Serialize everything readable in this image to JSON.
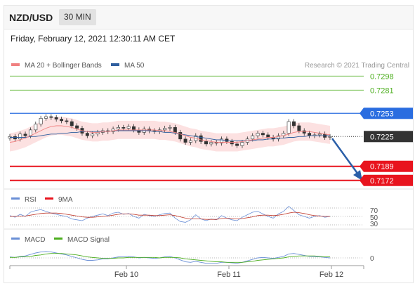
{
  "header": {
    "pair": "NZD/USD",
    "timeframe": "30 MIN"
  },
  "datetime": "Friday, February 12, 2021 12:30:11 AM CET",
  "legend": {
    "ma20": {
      "label": "MA 20 + Bollinger Bands",
      "color": "#f08080"
    },
    "ma50": {
      "label": "MA 50",
      "color": "#2f5f9f"
    },
    "credit": "Research © 2021 Trading Central"
  },
  "levels": [
    {
      "value": "0.7298",
      "kind": "target",
      "color": "#4cae1e"
    },
    {
      "value": "0.7281",
      "kind": "target",
      "color": "#4cae1e"
    },
    {
      "value": "0.7253",
      "kind": "pivot",
      "color": "#2a6de0"
    },
    {
      "value": "0.7225",
      "kind": "current",
      "color": "#333333"
    },
    {
      "value": "0.7189",
      "kind": "support",
      "color": "#e8141e"
    },
    {
      "value": "0.7172",
      "kind": "support",
      "color": "#e8141e"
    }
  ],
  "rsi": {
    "label": "RSI",
    "ma_label": "9MA",
    "levels": [
      "70",
      "50",
      "30"
    ]
  },
  "macd": {
    "label": "MACD",
    "signal_label": "MACD Signal",
    "zero": "0"
  },
  "xaxis": [
    "Feb 10",
    "Feb 11",
    "Feb 12"
  ],
  "chart_data": {
    "type": "candlestick",
    "ylim": [
      0.7165,
      0.7305
    ],
    "close": [
      0.7225,
      0.7222,
      0.7228,
      0.7226,
      0.7233,
      0.724,
      0.7247,
      0.7249,
      0.7248,
      0.7246,
      0.7244,
      0.7243,
      0.7238,
      0.7235,
      0.7229,
      0.7226,
      0.7228,
      0.723,
      0.7232,
      0.7231,
      0.7234,
      0.7236,
      0.7235,
      0.7237,
      0.7233,
      0.723,
      0.7234,
      0.7232,
      0.7231,
      0.7233,
      0.7235,
      0.7236,
      0.723,
      0.7222,
      0.7218,
      0.722,
      0.7226,
      0.7219,
      0.7216,
      0.7218,
      0.7217,
      0.7222,
      0.7219,
      0.7216,
      0.7214,
      0.7218,
      0.7222,
      0.7226,
      0.7229,
      0.7227,
      0.7224,
      0.7222,
      0.7226,
      0.7229,
      0.7243,
      0.7238,
      0.7232,
      0.7229,
      0.7226,
      0.7227,
      0.7228,
      0.7224,
      0.7225
    ],
    "ma20": [
      0.7218,
      0.7219,
      0.7221,
      0.7223,
      0.7226,
      0.7229,
      0.7232,
      0.7235,
      0.7237,
      0.7238,
      0.7238,
      0.7237,
      0.7236,
      0.7234,
      0.7232,
      0.7231,
      0.723,
      0.723,
      0.7231,
      0.7231,
      0.7232,
      0.7233,
      0.7233,
      0.7233,
      0.7233,
      0.7233,
      0.7233,
      0.7233,
      0.7233,
      0.7232,
      0.7232,
      0.7231,
      0.723,
      0.7228,
      0.7226,
      0.7224,
      0.7223,
      0.7221,
      0.722,
      0.7219,
      0.7218,
      0.7218,
      0.7218,
      0.7218,
      0.7218,
      0.7219,
      0.722,
      0.7221,
      0.7222,
      0.7223,
      0.7224,
      0.7224,
      0.7225,
      0.7226,
      0.7228,
      0.723,
      0.7231,
      0.7231,
      0.7231,
      0.723,
      0.7229,
      0.7228,
      0.7227
    ],
    "ma50": [
      0.7224,
      0.7224,
      0.7224,
      0.7224,
      0.7225,
      0.7225,
      0.7226,
      0.7227,
      0.7228,
      0.7228,
      0.7229,
      0.7229,
      0.723,
      0.723,
      0.7231,
      0.7231,
      0.7231,
      0.7231,
      0.7231,
      0.7231,
      0.7232,
      0.7232,
      0.7232,
      0.7232,
      0.7232,
      0.7232,
      0.7232,
      0.7232,
      0.7231,
      0.7231,
      0.723,
      0.723,
      0.7229,
      0.7228,
      0.7227,
      0.7226,
      0.7225,
      0.7224,
      0.7223,
      0.7222,
      0.7221,
      0.7221,
      0.722,
      0.722,
      0.722,
      0.722,
      0.722,
      0.722,
      0.7221,
      0.7221,
      0.7222,
      0.7222,
      0.7223,
      0.7223,
      0.7224,
      0.7224,
      0.7225,
      0.7225,
      0.7226,
      0.7226,
      0.7226,
      0.7226,
      0.7226
    ],
    "rsi": [
      52,
      48,
      55,
      50,
      60,
      64,
      66,
      62,
      58,
      55,
      52,
      50,
      44,
      42,
      40,
      46,
      50,
      53,
      56,
      52,
      58,
      60,
      55,
      57,
      50,
      46,
      55,
      52,
      50,
      54,
      57,
      58,
      46,
      38,
      36,
      42,
      54,
      44,
      40,
      44,
      42,
      52,
      46,
      42,
      40,
      48,
      54,
      60,
      62,
      56,
      50,
      46,
      56,
      62,
      74,
      64,
      54,
      50,
      46,
      50,
      52,
      48,
      50
    ],
    "rsi_ma": [
      50,
      50,
      51,
      51,
      53,
      55,
      57,
      58,
      58,
      58,
      57,
      55,
      53,
      51,
      49,
      48,
      48,
      49,
      50,
      51,
      53,
      55,
      56,
      56,
      55,
      53,
      53,
      53,
      52,
      52,
      53,
      54,
      52,
      49,
      46,
      44,
      44,
      44,
      43,
      43,
      43,
      45,
      46,
      45,
      44,
      45,
      47,
      49,
      52,
      53,
      53,
      52,
      53,
      55,
      58,
      60,
      59,
      57,
      54,
      52,
      51,
      50,
      50
    ],
    "macd": [
      0.2,
      0.1,
      0.3,
      0.4,
      0.7,
      1.0,
      1.2,
      1.3,
      1.2,
      1.0,
      0.8,
      0.6,
      0.3,
      0.0,
      -0.3,
      -0.5,
      -0.5,
      -0.4,
      -0.2,
      -0.2,
      0.0,
      0.2,
      0.2,
      0.3,
      0.2,
      0.0,
      0.1,
      0.0,
      -0.1,
      0.0,
      0.2,
      0.3,
      0.0,
      -0.4,
      -0.8,
      -0.9,
      -0.7,
      -0.9,
      -1.1,
      -1.1,
      -1.1,
      -0.9,
      -0.9,
      -1.0,
      -1.1,
      -0.9,
      -0.6,
      -0.3,
      0.0,
      0.1,
      0.0,
      -0.1,
      0.1,
      0.3,
      0.8,
      0.9,
      0.7,
      0.5,
      0.3,
      0.2,
      0.2,
      0.1,
      0.0
    ],
    "macd_signal": [
      0.1,
      0.1,
      0.2,
      0.2,
      0.3,
      0.5,
      0.6,
      0.8,
      0.9,
      0.9,
      0.9,
      0.8,
      0.7,
      0.6,
      0.4,
      0.2,
      0.1,
      0.0,
      -0.1,
      -0.1,
      -0.1,
      0.0,
      0.0,
      0.1,
      0.1,
      0.1,
      0.1,
      0.1,
      0.1,
      0.0,
      0.1,
      0.1,
      0.1,
      0.0,
      -0.2,
      -0.3,
      -0.4,
      -0.5,
      -0.6,
      -0.7,
      -0.8,
      -0.8,
      -0.9,
      -0.9,
      -0.9,
      -0.9,
      -0.8,
      -0.7,
      -0.5,
      -0.4,
      -0.3,
      -0.2,
      -0.1,
      0.0,
      0.2,
      0.3,
      0.4,
      0.4,
      0.4,
      0.4,
      0.3,
      0.2,
      0.2
    ]
  }
}
